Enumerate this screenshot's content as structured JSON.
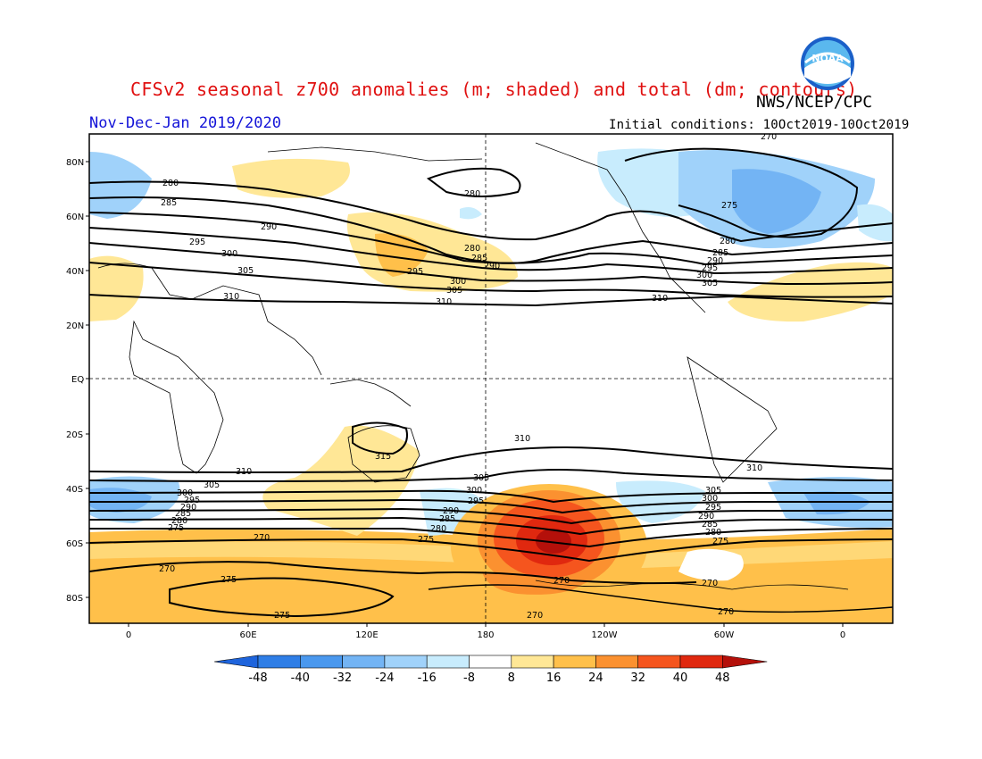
{
  "title": "CFSv2 seasonal z700 anomalies (m; shaded) and total (dm; contours)",
  "agency": "NWS/NCEP/CPC",
  "logo_text": "NOAA",
  "period": "Nov-Dec-Jan 2019/2020",
  "initial_conditions": "Initial conditions: 10Oct2019-10Oct2019",
  "lat_labels": [
    "80N",
    "60N",
    "40N",
    "20N",
    "EQ",
    "20S",
    "40S",
    "60S",
    "80S"
  ],
  "lon_labels": [
    "0",
    "60E",
    "120E",
    "180",
    "120W",
    "60W",
    "0"
  ],
  "colorbar": {
    "ticks": [
      "-48",
      "-40",
      "-32",
      "-24",
      "-16",
      "-8",
      "8",
      "16",
      "24",
      "32",
      "40",
      "48"
    ],
    "colors": [
      "#1e64dc",
      "#2f7ee6",
      "#4a98ee",
      "#73b4f4",
      "#a0d2fa",
      "#c8ecfd",
      "#ffffff",
      "#ffe796",
      "#ffc04a",
      "#fb9130",
      "#f5551e",
      "#e0280f",
      "#b4100a"
    ]
  },
  "contour_labels": [
    "270",
    "275",
    "280",
    "285",
    "290",
    "295",
    "300",
    "305",
    "310",
    "315"
  ],
  "colors": {
    "title": "#e01010",
    "period": "#1414d8"
  }
}
